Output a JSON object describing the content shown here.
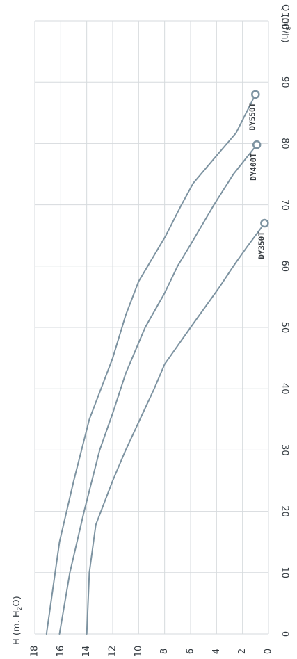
{
  "chart_data": {
    "type": "line",
    "orientation": "rotated-90",
    "x_axis": {
      "label_prefix": "Q (m",
      "label_sup": "3",
      "label_suffix": "/h)",
      "range": [
        0,
        100
      ],
      "ticks": [
        "0",
        "10",
        "20",
        "30",
        "40",
        "50",
        "60",
        "70",
        "80",
        "90",
        "100"
      ]
    },
    "y_axis": {
      "label_prefix": "H (m. H",
      "label_sub": "2",
      "label_suffix": "O)",
      "range": [
        0,
        18
      ],
      "ticks": [
        "0",
        "2",
        "4",
        "6",
        "8",
        "10",
        "12",
        "14",
        "16",
        "18"
      ]
    },
    "grid": true,
    "line_color": "#7d93a1",
    "series": [
      {
        "name": "DY350T",
        "points": [
          [
            0,
            14
          ],
          [
            10,
            13.8
          ],
          [
            17.8,
            13.3
          ],
          [
            25,
            12
          ],
          [
            30,
            11
          ],
          [
            40,
            8.8
          ],
          [
            44,
            8
          ],
          [
            50,
            6
          ],
          [
            56.5,
            3.8
          ],
          [
            60,
            2.7
          ],
          [
            63,
            1.7
          ],
          [
            67,
            0.3
          ]
        ]
      },
      {
        "name": "DY400T",
        "points": [
          [
            0,
            16.1
          ],
          [
            10,
            15.3
          ],
          [
            20,
            14.2
          ],
          [
            30,
            13
          ],
          [
            36,
            12
          ],
          [
            42.5,
            11
          ],
          [
            50,
            9.5
          ],
          [
            55.6,
            8
          ],
          [
            60,
            7
          ],
          [
            63.5,
            6
          ],
          [
            70,
            4.2
          ],
          [
            75,
            2.7
          ],
          [
            79.8,
            0.9
          ]
        ]
      },
      {
        "name": "DY550T",
        "points": [
          [
            0,
            17.1
          ],
          [
            15,
            16.1
          ],
          [
            25,
            15
          ],
          [
            35,
            13.8
          ],
          [
            45,
            12
          ],
          [
            52,
            11
          ],
          [
            57.5,
            10
          ],
          [
            65,
            7.9
          ],
          [
            70,
            6.7
          ],
          [
            73.5,
            5.8
          ],
          [
            78,
            4
          ],
          [
            81.7,
            2.5
          ],
          [
            88,
            1
          ]
        ]
      }
    ]
  }
}
